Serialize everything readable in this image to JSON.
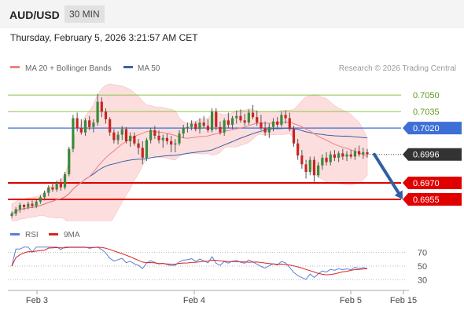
{
  "header": {
    "symbol": "AUD/USD",
    "timeframe": "30 MIN",
    "timestamp": "Thursday, February 5, 2026 3:21:57 AM CET"
  },
  "legend": {
    "ma20": "MA 20 + Bollinger Bands",
    "ma50": "MA 50",
    "credit": "Research © 2026 Trading Central",
    "rsi": "RSI",
    "rsi_ma": "9MA"
  },
  "colors": {
    "resistance_green": "#8bc34a",
    "pivot_blue": "#3d6fd6",
    "support_red": "#e00000",
    "price_dark": "#333333",
    "candle_up": "#3a8a3a",
    "candle_down": "#cc2222",
    "bb_fill": "#fbd3d3",
    "ma20": "#f08080",
    "ma50": "#3a62a8",
    "rsi_line": "#5b7fd6",
    "rsi_ma_line": "#dd2222",
    "arrow": "#2f5fa5"
  },
  "chart_data": [
    {
      "type": "candlestick",
      "title": "AUD/USD",
      "timeframe": "30 MIN",
      "x_ticks": [
        "Feb 3",
        "Feb 4",
        "Feb 5",
        "Feb 15"
      ],
      "ylim": [
        0.6935,
        0.7068
      ],
      "levels": [
        {
          "label": "0.7050",
          "value": 0.705,
          "kind": "resistance"
        },
        {
          "label": "0.7035",
          "value": 0.7035,
          "kind": "resistance"
        },
        {
          "label": "0.7020",
          "value": 0.702,
          "kind": "pivot"
        },
        {
          "label": "0.6996",
          "value": 0.6996,
          "kind": "last-price"
        },
        {
          "label": "0.6970",
          "value": 0.697,
          "kind": "support"
        },
        {
          "label": "0.6955",
          "value": 0.6955,
          "kind": "support"
        }
      ],
      "forecast": {
        "from": 0.6996,
        "to": 0.6955,
        "direction": "down"
      },
      "candles": [
        [
          0.694,
          0.6944,
          0.6938,
          0.6942
        ],
        [
          0.6942,
          0.6948,
          0.694,
          0.6946
        ],
        [
          0.6946,
          0.6952,
          0.6943,
          0.695
        ],
        [
          0.695,
          0.6951,
          0.6945,
          0.6948
        ],
        [
          0.6948,
          0.6953,
          0.6946,
          0.6951
        ],
        [
          0.6951,
          0.6954,
          0.6947,
          0.6949
        ],
        [
          0.6949,
          0.6955,
          0.6947,
          0.6953
        ],
        [
          0.6953,
          0.6959,
          0.6951,
          0.6957
        ],
        [
          0.6957,
          0.6963,
          0.6954,
          0.6961
        ],
        [
          0.6961,
          0.6968,
          0.6958,
          0.6966
        ],
        [
          0.6966,
          0.697,
          0.6962,
          0.6964
        ],
        [
          0.6964,
          0.6972,
          0.6962,
          0.697
        ],
        [
          0.697,
          0.6974,
          0.6963,
          0.6966
        ],
        [
          0.6966,
          0.698,
          0.6964,
          0.6978
        ],
        [
          0.6978,
          0.7003,
          0.6976,
          0.7001
        ],
        [
          0.7001,
          0.7032,
          0.6998,
          0.7029
        ],
        [
          0.7029,
          0.7034,
          0.7017,
          0.702
        ],
        [
          0.702,
          0.7028,
          0.7014,
          0.7016
        ],
        [
          0.7016,
          0.7029,
          0.7013,
          0.7027
        ],
        [
          0.7027,
          0.7031,
          0.7018,
          0.7021
        ],
        [
          0.7021,
          0.7028,
          0.7016,
          0.7025
        ],
        [
          0.7025,
          0.7051,
          0.7022,
          0.7044
        ],
        [
          0.7044,
          0.7048,
          0.703,
          0.7035
        ],
        [
          0.7035,
          0.7038,
          0.7024,
          0.7028
        ],
        [
          0.7028,
          0.703,
          0.7013,
          0.7016
        ],
        [
          0.7016,
          0.7019,
          0.7006,
          0.7009
        ],
        [
          0.7009,
          0.7017,
          0.7005,
          0.7014
        ],
        [
          0.7014,
          0.7022,
          0.7009,
          0.7019
        ],
        [
          0.7019,
          0.7021,
          0.7006,
          0.7008
        ],
        [
          0.7008,
          0.7016,
          0.7003,
          0.7013
        ],
        [
          0.7013,
          0.7016,
          0.7004,
          0.7006
        ],
        [
          0.7006,
          0.701,
          0.6996,
          0.7002
        ],
        [
          0.7002,
          0.7008,
          0.6987,
          0.6993
        ],
        [
          0.6993,
          0.7011,
          0.699,
          0.7009
        ],
        [
          0.7009,
          0.702,
          0.7006,
          0.7018
        ],
        [
          0.7018,
          0.7022,
          0.701,
          0.7013
        ],
        [
          0.7013,
          0.7018,
          0.7006,
          0.7009
        ],
        [
          0.7009,
          0.7014,
          0.7002,
          0.7011
        ],
        [
          0.7011,
          0.7015,
          0.7005,
          0.7008
        ],
        [
          0.7008,
          0.7013,
          0.6998,
          0.7005
        ],
        [
          0.7005,
          0.701,
          0.6998,
          0.7006
        ],
        [
          0.7006,
          0.7018,
          0.7004,
          0.7015
        ],
        [
          0.7015,
          0.7023,
          0.7011,
          0.702
        ],
        [
          0.702,
          0.7025,
          0.7016,
          0.7021
        ],
        [
          0.7021,
          0.7027,
          0.7018,
          0.7024
        ],
        [
          0.7024,
          0.7026,
          0.7017,
          0.7019
        ],
        [
          0.7019,
          0.7029,
          0.7015,
          0.7025
        ],
        [
          0.7025,
          0.7031,
          0.702,
          0.7022
        ],
        [
          0.7022,
          0.7028,
          0.7016,
          0.7018
        ],
        [
          0.7018,
          0.7038,
          0.7016,
          0.7035
        ],
        [
          0.7035,
          0.7038,
          0.7018,
          0.7021
        ],
        [
          0.7021,
          0.7026,
          0.7014,
          0.7016
        ],
        [
          0.7016,
          0.7029,
          0.7013,
          0.7027
        ],
        [
          0.7027,
          0.7034,
          0.702,
          0.7023
        ],
        [
          0.7023,
          0.7031,
          0.7019,
          0.7029
        ],
        [
          0.7029,
          0.7036,
          0.7024,
          0.7031
        ],
        [
          0.7031,
          0.7037,
          0.7025,
          0.7027
        ],
        [
          0.7027,
          0.7033,
          0.7022,
          0.7025
        ],
        [
          0.7025,
          0.7037,
          0.7023,
          0.7034
        ],
        [
          0.7034,
          0.7041,
          0.7028,
          0.703
        ],
        [
          0.703,
          0.7036,
          0.7022,
          0.7025
        ],
        [
          0.7025,
          0.7032,
          0.7018,
          0.702
        ],
        [
          0.702,
          0.7026,
          0.7013,
          0.7016
        ],
        [
          0.7016,
          0.7024,
          0.7011,
          0.7021
        ],
        [
          0.7021,
          0.7029,
          0.7017,
          0.7026
        ],
        [
          0.7026,
          0.703,
          0.7019,
          0.7023
        ],
        [
          0.7023,
          0.7035,
          0.7021,
          0.7032
        ],
        [
          0.7032,
          0.7036,
          0.7024,
          0.7029
        ],
        [
          0.7029,
          0.7034,
          0.7017,
          0.7019
        ],
        [
          0.7019,
          0.7022,
          0.7003,
          0.7006
        ],
        [
          0.7006,
          0.701,
          0.6991,
          0.6995
        ],
        [
          0.6995,
          0.7,
          0.6983,
          0.6987
        ],
        [
          0.6987,
          0.6991,
          0.6974,
          0.698
        ],
        [
          0.698,
          0.6994,
          0.6977,
          0.6991
        ],
        [
          0.6991,
          0.6994,
          0.6971,
          0.6977
        ],
        [
          0.6977,
          0.6989,
          0.6975,
          0.6986
        ],
        [
          0.6986,
          0.6996,
          0.6982,
          0.6993
        ],
        [
          0.6993,
          0.6998,
          0.6986,
          0.6989
        ],
        [
          0.6989,
          0.6999,
          0.6986,
          0.6996
        ],
        [
          0.6996,
          0.7,
          0.699,
          0.6993
        ],
        [
          0.6993,
          0.6999,
          0.6989,
          0.6997
        ],
        [
          0.6997,
          0.7001,
          0.6991,
          0.6994
        ],
        [
          0.6994,
          0.6999,
          0.699,
          0.6996
        ],
        [
          0.6996,
          0.7,
          0.6992,
          0.6994
        ],
        [
          0.6994,
          0.7002,
          0.6991,
          0.6999
        ],
        [
          0.6999,
          0.7004,
          0.6994,
          0.6996
        ],
        [
          0.6996,
          0.7002,
          0.6992,
          0.6998
        ],
        [
          0.6998,
          0.7001,
          0.6993,
          0.6996
        ]
      ]
    },
    {
      "type": "line",
      "title": "RSI",
      "series": [
        {
          "name": "RSI"
        },
        {
          "name": "9MA"
        }
      ],
      "y_ticks": [
        70,
        50,
        30
      ],
      "ylim": [
        20,
        80
      ]
    }
  ]
}
